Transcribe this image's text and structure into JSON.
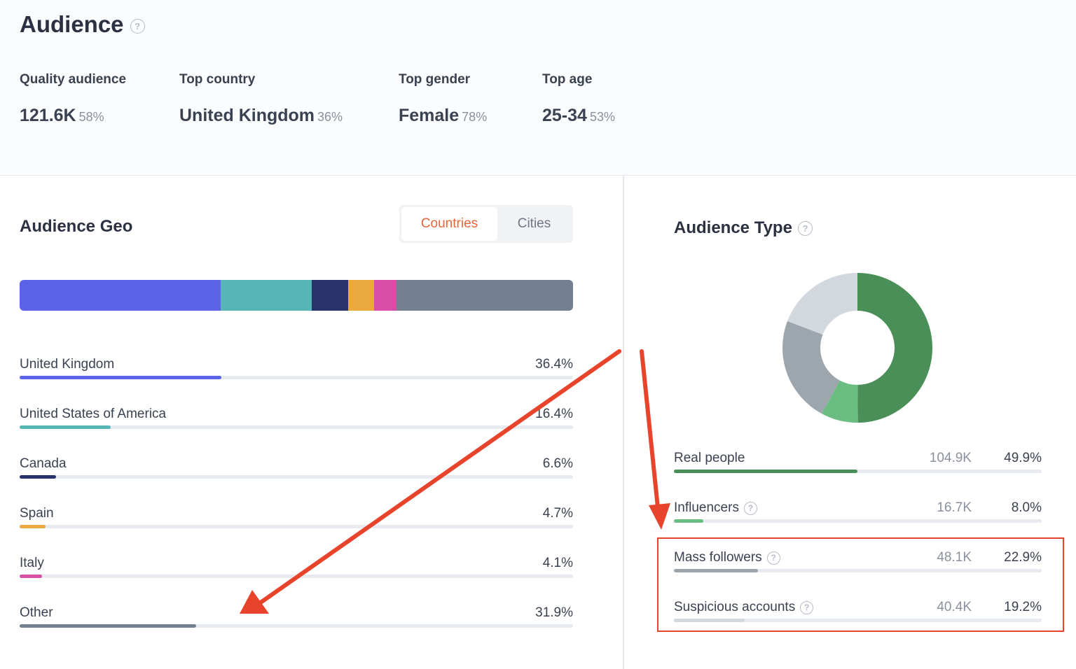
{
  "header": {
    "title": "Audience",
    "help_icon": "?"
  },
  "stats": [
    {
      "label": "Quality audience",
      "value": "121.6K",
      "pct": "58%"
    },
    {
      "label": "Top country",
      "value": "United Kingdom",
      "pct": "36%"
    },
    {
      "label": "Top gender",
      "value": "Female",
      "pct": "78%"
    },
    {
      "label": "Top age",
      "value": "25-34",
      "pct": "53%"
    }
  ],
  "geo": {
    "title": "Audience Geo",
    "tabs": {
      "active": "Countries",
      "inactive": "Cities"
    },
    "rows": [
      {
        "label": "United Kingdom",
        "pct": "36.4%",
        "value": 36.4,
        "color": "#5b63e8"
      },
      {
        "label": "United States of America",
        "pct": "16.4%",
        "value": 16.4,
        "color": "#58b5b5"
      },
      {
        "label": "Canada",
        "pct": "6.6%",
        "value": 6.6,
        "color": "#29336b"
      },
      {
        "label": "Spain",
        "pct": "4.7%",
        "value": 4.7,
        "color": "#eba93f"
      },
      {
        "label": "Italy",
        "pct": "4.1%",
        "value": 4.1,
        "color": "#d84ea6"
      },
      {
        "label": "Other",
        "pct": "31.9%",
        "value": 31.9,
        "color": "#748091"
      }
    ]
  },
  "audience_type": {
    "title": "Audience Type",
    "help_icon": "?",
    "rows": [
      {
        "label": "Real people",
        "count": "104.9K",
        "pct": "49.9%",
        "value": 49.9,
        "color": "#4a8f58",
        "help": false
      },
      {
        "label": "Influencers",
        "count": "16.7K",
        "pct": "8.0%",
        "value": 8.0,
        "color": "#6abd80",
        "help": true
      },
      {
        "label": "Mass followers",
        "count": "48.1K",
        "pct": "22.9%",
        "value": 22.9,
        "color": "#9ea6ad",
        "help": true
      },
      {
        "label": "Suspicious accounts",
        "count": "40.4K",
        "pct": "19.2%",
        "value": 19.2,
        "color": "#d2d8de",
        "help": true
      }
    ]
  },
  "annotation": {
    "color": "#e8432b"
  }
}
